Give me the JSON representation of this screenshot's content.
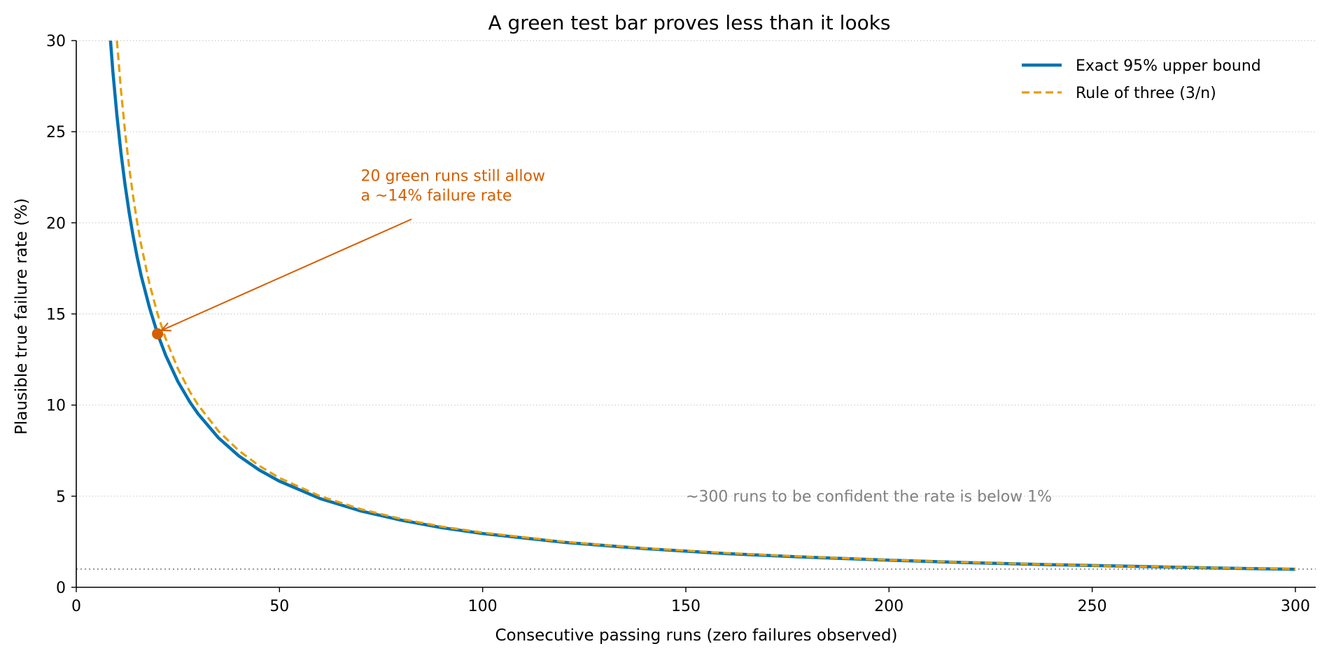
{
  "chart_data": {
    "type": "line",
    "title": "A green test bar proves less than it looks",
    "xlabel": "Consecutive passing runs (zero failures observed)",
    "ylabel": "Plausible true failure rate (%)",
    "xlim": [
      0,
      305
    ],
    "ylim": [
      0,
      30
    ],
    "xticks": [
      0,
      50,
      100,
      150,
      200,
      250,
      300
    ],
    "yticks": [
      0,
      5,
      10,
      15,
      20,
      25,
      30
    ],
    "grid": "horizontal-dotted",
    "legend_position": "top-right",
    "series": [
      {
        "name": "Exact 95% upper bound",
        "color": "#0072b2",
        "style": "solid",
        "x": [
          8,
          9,
          10,
          11,
          12,
          13,
          14,
          15,
          16,
          18,
          20,
          22,
          25,
          28,
          30,
          35,
          40,
          45,
          50,
          60,
          70,
          80,
          90,
          100,
          120,
          140,
          160,
          180,
          200,
          220,
          240,
          260,
          280,
          300
        ],
        "y": [
          31.23,
          28.31,
          25.89,
          23.84,
          22.09,
          20.58,
          19.26,
          18.1,
          17.07,
          15.36,
          13.91,
          12.73,
          11.29,
          10.15,
          9.51,
          8.2,
          7.21,
          6.44,
          5.82,
          4.87,
          4.19,
          3.68,
          3.27,
          2.95,
          2.47,
          2.12,
          1.85,
          1.65,
          1.49,
          1.35,
          1.24,
          1.15,
          1.06,
          0.99
        ]
      },
      {
        "name": "Rule of three (3/n)",
        "color": "#e69f00",
        "style": "dashed",
        "x": [
          10,
          11,
          12,
          13,
          14,
          15,
          16,
          18,
          20,
          22,
          25,
          28,
          30,
          35,
          40,
          45,
          50,
          60,
          70,
          80,
          90,
          100,
          120,
          140,
          160,
          180,
          200,
          220,
          240,
          260,
          280,
          300
        ],
        "y": [
          30,
          27.27,
          25,
          23.08,
          21.43,
          20,
          18.75,
          16.67,
          15,
          13.64,
          12,
          10.71,
          10,
          8.57,
          7.5,
          6.67,
          6,
          5,
          4.29,
          3.75,
          3.33,
          3,
          2.5,
          2.14,
          1.88,
          1.67,
          1.5,
          1.36,
          1.25,
          1.15,
          1.07,
          1
        ]
      }
    ],
    "reference_line": {
      "y": 1,
      "color": "#999999",
      "style": "dotted"
    },
    "highlight_point": {
      "x": 20,
      "y": 13.91,
      "color": "#d55e00"
    },
    "annotations": [
      {
        "name": "highlight-annotation",
        "lines": [
          "20 green runs still allow",
          "a ~14% failure rate"
        ],
        "x": 70,
        "y": 22.3,
        "arrow_tail": [
          82.5,
          20.2
        ],
        "arrow_to": [
          21,
          14.1
        ],
        "color": "#d55e00"
      },
      {
        "name": "reference-annotation",
        "lines": [
          "~300 runs to be confident the rate is below 1%"
        ],
        "x": 150,
        "y": 4.7,
        "color": "#808080"
      }
    ]
  }
}
